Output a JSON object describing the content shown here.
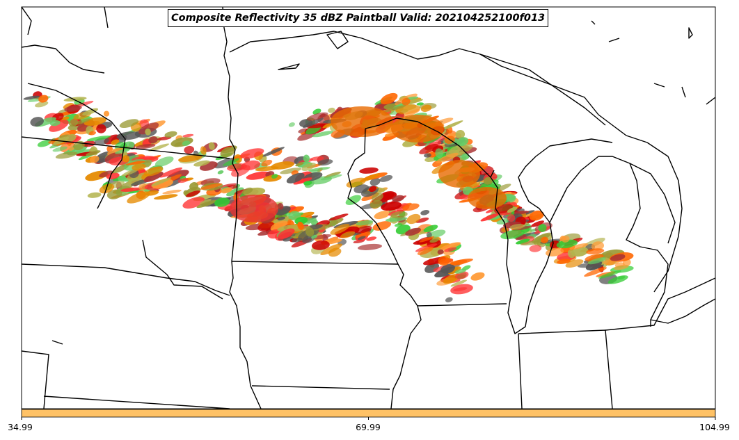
{
  "title": "Composite Reflectivity 35 dBZ Paintball Valid: 202104252100f013",
  "colorbar": {
    "color": "#ffc266",
    "tick_labels": [
      "34.99",
      "69.99",
      "104.99"
    ]
  },
  "map": {
    "background": "#ffffff",
    "boundary_color": "#000000",
    "region": "Upper Midwest / Great Lakes",
    "paintball_colors": [
      "#ff6600",
      "#ff3333",
      "#ff9933",
      "#cc0000",
      "#33cc33",
      "#999933",
      "#b3b34d",
      "#555555",
      "#a33",
      "#66cc66",
      "#e68a00"
    ]
  }
}
